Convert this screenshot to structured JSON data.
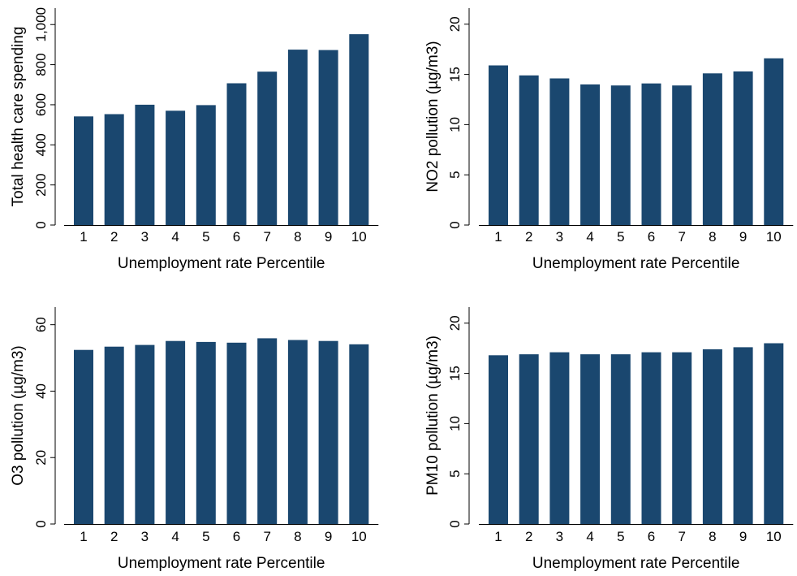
{
  "colors": {
    "bar": "#1a476f",
    "axis": "#000000",
    "background": "#ffffff"
  },
  "chart_data": [
    {
      "type": "bar",
      "xlabel": "Unemployment rate Percentile",
      "ylabel": "Total health care spending",
      "categories": [
        "1",
        "2",
        "3",
        "4",
        "5",
        "6",
        "7",
        "8",
        "9",
        "10"
      ],
      "values": [
        542,
        553,
        600,
        570,
        598,
        707,
        765,
        875,
        873,
        952
      ],
      "yticks": [
        0,
        200,
        400,
        600,
        800,
        1000
      ],
      "ytick_labels": [
        "0",
        "200",
        "400",
        "600",
        "800",
        "1,000"
      ],
      "ylim": [
        0,
        1082
      ],
      "grid": false
    },
    {
      "type": "bar",
      "xlabel": "Unemployment rate Percentile",
      "ylabel": "NO2 pollution (µg/m3)",
      "categories": [
        "1",
        "2",
        "3",
        "4",
        "5",
        "6",
        "7",
        "8",
        "9",
        "10"
      ],
      "values": [
        15.9,
        14.9,
        14.6,
        14.0,
        13.9,
        14.1,
        13.9,
        15.1,
        15.3,
        16.6
      ],
      "yticks": [
        0,
        5,
        10,
        15,
        20
      ],
      "ytick_labels": [
        "0",
        "5",
        "10",
        "15",
        "20"
      ],
      "ylim": [
        0,
        21.6
      ],
      "grid": false
    },
    {
      "type": "bar",
      "xlabel": "Unemployment rate Percentile",
      "ylabel": "O3 pollution (µg/m3)",
      "categories": [
        "1",
        "2",
        "3",
        "4",
        "5",
        "6",
        "7",
        "8",
        "9",
        "10"
      ],
      "values": [
        52.4,
        53.4,
        53.9,
        55.1,
        54.8,
        54.6,
        55.9,
        55.4,
        55.1,
        54.1
      ],
      "yticks": [
        0,
        20,
        40,
        60
      ],
      "ytick_labels": [
        "0",
        "20",
        "40",
        "60"
      ],
      "ylim": [
        0,
        65.3
      ],
      "grid": false
    },
    {
      "type": "bar",
      "xlabel": "Unemployment rate Percentile",
      "ylabel": "PM10 pollution (µg/m3)",
      "categories": [
        "1",
        "2",
        "3",
        "4",
        "5",
        "6",
        "7",
        "8",
        "9",
        "10"
      ],
      "values": [
        16.8,
        16.9,
        17.1,
        16.9,
        16.9,
        17.1,
        17.1,
        17.4,
        17.6,
        18.0
      ],
      "yticks": [
        0,
        5,
        10,
        15,
        20
      ],
      "ytick_labels": [
        "0",
        "5",
        "10",
        "15",
        "20"
      ],
      "ylim": [
        0,
        21.6
      ],
      "grid": false
    }
  ]
}
